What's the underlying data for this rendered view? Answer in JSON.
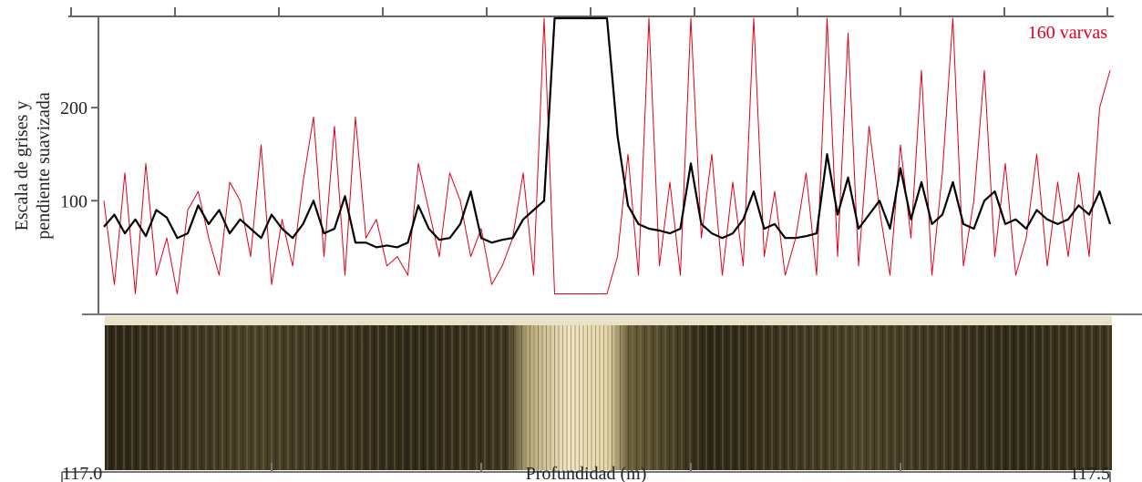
{
  "chart_data": {
    "type": "line",
    "ylabel": [
      "Escala de grises y",
      "pendiente suavizada"
    ],
    "xlabel": "Profundidad (m)",
    "annotation": "160 varvas",
    "xlim": [
      117,
      117.5
    ],
    "xticks": [
      {
        "value": 117,
        "label": "117.0"
      },
      {
        "value": 117.5,
        "label": "117.5"
      }
    ],
    "xminorticks": [
      117.1,
      117.2,
      117.3,
      117.4
    ],
    "ylim": [
      -22,
      296
    ],
    "yticks": [
      100,
      200
    ],
    "series": [
      {
        "name": "Escala de grises suavizada",
        "color": "#000000",
        "width": 2.2,
        "x": [
          117.02,
          117.025,
          117.03,
          117.035,
          117.04,
          117.045,
          117.05,
          117.055,
          117.06,
          117.065,
          117.07,
          117.075,
          117.08,
          117.085,
          117.09,
          117.095,
          117.1,
          117.105,
          117.11,
          117.115,
          117.12,
          117.125,
          117.13,
          117.135,
          117.14,
          117.145,
          117.15,
          117.155,
          117.16,
          117.165,
          117.17,
          117.175,
          117.18,
          117.185,
          117.19,
          117.195,
          117.2,
          117.205,
          117.21,
          117.215,
          117.22,
          117.225,
          117.23,
          117.235,
          117.24,
          117.245,
          117.25,
          117.255,
          117.26,
          117.265,
          117.27,
          117.275,
          117.28,
          117.285,
          117.29,
          117.295,
          117.3,
          117.305,
          117.31,
          117.315,
          117.32,
          117.325,
          117.33,
          117.335,
          117.34,
          117.345,
          117.35,
          117.355,
          117.36,
          117.365,
          117.37,
          117.375,
          117.38,
          117.385,
          117.39,
          117.395,
          117.4,
          117.405,
          117.41,
          117.415,
          117.42,
          117.425,
          117.43,
          117.435,
          117.44,
          117.445,
          117.45,
          117.455,
          117.46,
          117.465,
          117.47,
          117.475,
          117.48,
          117.485,
          117.49,
          117.495,
          117.5
        ],
        "values": [
          72,
          85,
          65,
          80,
          62,
          90,
          82,
          60,
          65,
          95,
          75,
          90,
          65,
          80,
          70,
          60,
          85,
          70,
          60,
          75,
          100,
          65,
          70,
          105,
          55,
          55,
          50,
          52,
          50,
          55,
          95,
          70,
          58,
          60,
          75,
          110,
          60,
          55,
          58,
          60,
          80,
          90,
          100,
          296,
          296,
          296,
          296,
          296,
          296,
          170,
          95,
          75,
          70,
          68,
          65,
          70,
          140,
          75,
          65,
          60,
          65,
          80,
          110,
          70,
          75,
          60,
          60,
          62,
          65,
          150,
          85,
          125,
          70,
          85,
          100,
          70,
          135,
          80,
          120,
          75,
          85,
          120,
          75,
          70,
          100,
          110,
          75,
          80,
          70,
          90,
          80,
          75,
          80,
          95,
          85,
          110,
          75
        ]
      },
      {
        "name": "Pendiente",
        "color": "#e0001b",
        "width": 1,
        "x": [
          117.02,
          117.025,
          117.03,
          117.035,
          117.04,
          117.045,
          117.05,
          117.055,
          117.06,
          117.065,
          117.07,
          117.075,
          117.08,
          117.085,
          117.09,
          117.095,
          117.1,
          117.105,
          117.11,
          117.115,
          117.12,
          117.125,
          117.13,
          117.135,
          117.14,
          117.145,
          117.15,
          117.155,
          117.16,
          117.165,
          117.17,
          117.175,
          117.18,
          117.185,
          117.19,
          117.195,
          117.2,
          117.205,
          117.21,
          117.215,
          117.22,
          117.225,
          117.23,
          117.235,
          117.24,
          117.245,
          117.25,
          117.255,
          117.26,
          117.265,
          117.27,
          117.275,
          117.28,
          117.285,
          117.29,
          117.295,
          117.3,
          117.305,
          117.31,
          117.315,
          117.32,
          117.325,
          117.33,
          117.335,
          117.34,
          117.345,
          117.35,
          117.355,
          117.36,
          117.365,
          117.37,
          117.375,
          117.38,
          117.385,
          117.39,
          117.395,
          117.4,
          117.405,
          117.41,
          117.415,
          117.42,
          117.425,
          117.43,
          117.435,
          117.44,
          117.445,
          117.45,
          117.455,
          117.46,
          117.465,
          117.47,
          117.475,
          117.48,
          117.485,
          117.49,
          117.495,
          117.5
        ],
        "values": [
          100,
          10,
          130,
          0,
          140,
          20,
          60,
          0,
          90,
          110,
          60,
          20,
          120,
          100,
          40,
          160,
          10,
          80,
          30,
          120,
          190,
          40,
          180,
          20,
          190,
          60,
          80,
          30,
          40,
          20,
          140,
          90,
          40,
          130,
          100,
          40,
          70,
          10,
          30,
          60,
          130,
          20,
          296,
          0,
          0,
          0,
          0,
          0,
          0,
          40,
          150,
          20,
          296,
          30,
          120,
          20,
          296,
          60,
          150,
          20,
          120,
          30,
          296,
          40,
          110,
          20,
          60,
          130,
          20,
          296,
          40,
          280,
          30,
          180,
          90,
          20,
          160,
          60,
          240,
          20,
          130,
          296,
          30,
          100,
          240,
          40,
          140,
          20,
          60,
          150,
          30,
          120,
          40,
          130,
          40,
          200,
          240
        ]
      }
    ]
  }
}
